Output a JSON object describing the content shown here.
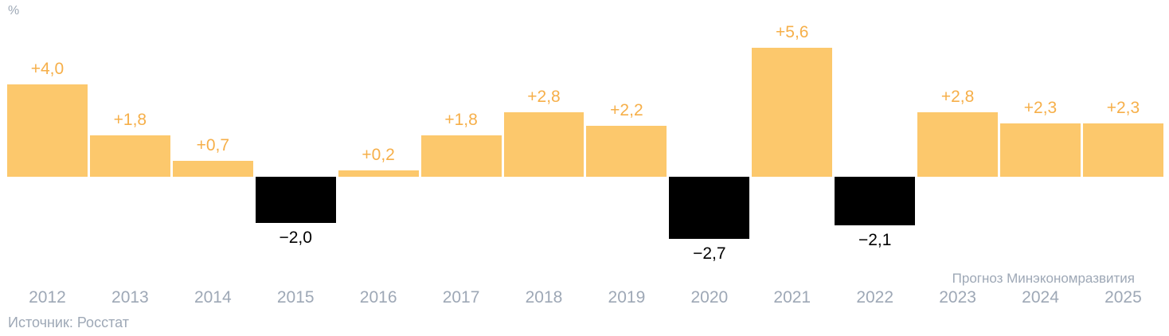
{
  "chart_data": {
    "type": "bar",
    "title": "",
    "unit_label": "%",
    "categories": [
      "2012",
      "2013",
      "2014",
      "2015",
      "2016",
      "2017",
      "2018",
      "2019",
      "2020",
      "2021",
      "2022",
      "2023",
      "2024",
      "2025"
    ],
    "values": [
      4.0,
      1.8,
      0.7,
      -2.0,
      0.2,
      1.8,
      2.8,
      2.2,
      -2.7,
      5.6,
      -2.1,
      2.8,
      2.3,
      2.3
    ],
    "value_labels": [
      "+4,0",
      "+1,8",
      "+0,7",
      "−2,0",
      "+0,2",
      "+1,8",
      "+2,8",
      "+2,2",
      "−2,7",
      "+5,6",
      "−2,1",
      "+2,8",
      "+2,3",
      "+2,3"
    ],
    "forecast_annotation": "Прогноз Минэкономразвития",
    "forecast_years": [
      "2023",
      "2024",
      "2025"
    ],
    "source": "Источник: Росстат",
    "ylim": [
      -3,
      6
    ],
    "grid": false,
    "legend": false,
    "colors": {
      "bar_positive": "#FCC86C",
      "bar_negative": "#000000",
      "label_positive": "#F6AF49",
      "label_negative": "#000000",
      "axis_text": "#9EA8B6"
    }
  }
}
